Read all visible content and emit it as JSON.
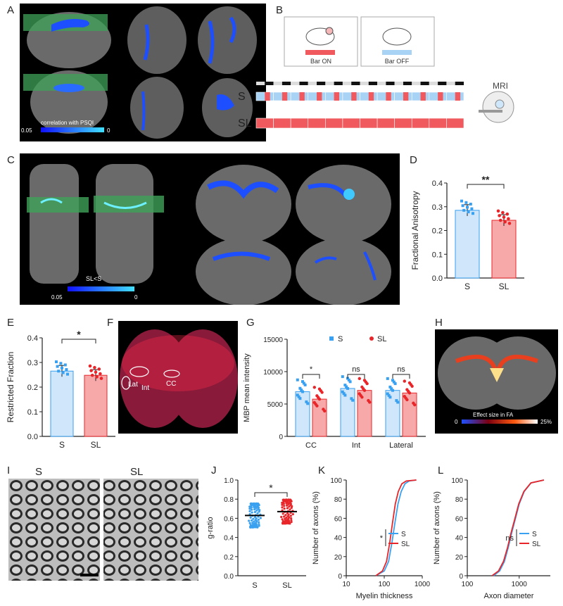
{
  "panels": {
    "A": {
      "letter": "A",
      "colorbar_label": "correlation with PSQI",
      "colorbar_min": "0.05",
      "colorbar_max": "0"
    },
    "B": {
      "letter": "B",
      "bar_on": "Bar ON",
      "bar_off": "Bar OFF",
      "row_S": "S",
      "row_SL": "SL",
      "mri": "MRI",
      "colors": {
        "on": "#f05a5e",
        "off": "#a9d3f5"
      }
    },
    "C": {
      "letter": "C",
      "colorbar_label": "SL<S",
      "colorbar_min": "0.05",
      "colorbar_max": "0"
    },
    "D": {
      "letter": "D",
      "significance": "**",
      "chart_data": {
        "type": "bar",
        "categories": [
          "S",
          "SL"
        ],
        "values": [
          0.285,
          0.243
        ],
        "ylabel": "Fractional Anisotropy",
        "ylim": [
          0,
          0.4
        ],
        "yticks": [
          "0.0",
          "0.1",
          "0.2",
          "0.3",
          "0.4"
        ]
      }
    },
    "E": {
      "letter": "E",
      "significance": "*",
      "chart_data": {
        "type": "bar",
        "categories": [
          "S",
          "SL"
        ],
        "values": [
          0.265,
          0.248
        ],
        "ylabel": "Restricted Fraction",
        "ylim": [
          0,
          0.4
        ],
        "yticks": [
          "0.0",
          "0.1",
          "0.2",
          "0.3",
          "0.4"
        ]
      }
    },
    "F": {
      "letter": "F",
      "labels": {
        "lat": "Lat",
        "int": "Int",
        "cc": "CC"
      }
    },
    "G": {
      "letter": "G",
      "sig": [
        "*",
        "ns",
        "ns"
      ],
      "chart_data": {
        "type": "bar",
        "categories": [
          "CC",
          "Int",
          "Lateral"
        ],
        "series": [
          {
            "name": "S",
            "values": [
              6900,
              7400,
              7100
            ]
          },
          {
            "name": "SL",
            "values": [
              5750,
              7100,
              6700
            ]
          }
        ],
        "ylabel": "MBP mean intensity",
        "ylim": [
          0,
          15000
        ],
        "yticks": [
          "0",
          "5000",
          "10000",
          "15000"
        ]
      }
    },
    "H": {
      "letter": "H",
      "colorbar_label": "Effect size in FA",
      "colorbar_min": "0",
      "colorbar_max": "25%"
    },
    "I": {
      "letter": "I",
      "label_S": "S",
      "label_SL": "SL"
    },
    "J": {
      "letter": "J",
      "significance": "*",
      "chart_data": {
        "type": "scatter",
        "categories": [
          "S",
          "SL"
        ],
        "medians": [
          0.63,
          0.67
        ],
        "ylabel": "g-ratio",
        "ylim": [
          0,
          1.0
        ],
        "yticks": [
          "0.0",
          "0.2",
          "0.4",
          "0.6",
          "0.8",
          "1.0"
        ]
      }
    },
    "K": {
      "letter": "K",
      "sig": "*",
      "chart_data": {
        "type": "line",
        "xlabel": "Myelin thickness",
        "ylabel": "Number of axons (%)",
        "xscale": "log",
        "xticks": [
          "10",
          "100",
          "1000"
        ],
        "yticks": [
          "0",
          "20",
          "40",
          "60",
          "80",
          "100"
        ],
        "series": [
          {
            "name": "S",
            "x": [
              60,
              100,
              130,
              160,
              190,
              230,
              280,
              350,
              450,
              700
            ],
            "y": [
              0,
              5,
              15,
              35,
              55,
              75,
              88,
              96,
              99,
              100
            ]
          },
          {
            "name": "SL",
            "x": [
              60,
              90,
              115,
              140,
              165,
              195,
              235,
              290,
              380,
              700
            ],
            "y": [
              0,
              5,
              15,
              35,
              55,
              75,
              88,
              96,
              99,
              100
            ]
          }
        ]
      }
    },
    "L": {
      "letter": "L",
      "sig": "ns",
      "chart_data": {
        "type": "line",
        "xlabel": "Axon diameter",
        "ylabel": "Number of axons (%)",
        "xscale": "log",
        "xticks": [
          "100",
          "1000"
        ],
        "yticks": [
          "0",
          "20",
          "40",
          "60",
          "80",
          "100"
        ],
        "series": [
          {
            "name": "S",
            "x": [
              320,
              420,
              520,
              620,
              720,
              850,
              1000,
              1250,
              1700,
              3000
            ],
            "y": [
              0,
              5,
              15,
              30,
              45,
              60,
              75,
              88,
              97,
              100
            ]
          },
          {
            "name": "SL",
            "x": [
              300,
              400,
              500,
              600,
              700,
              830,
              980,
              1230,
              1680,
              3000
            ],
            "y": [
              0,
              5,
              15,
              30,
              45,
              60,
              75,
              88,
              97,
              100
            ]
          }
        ]
      }
    }
  }
}
